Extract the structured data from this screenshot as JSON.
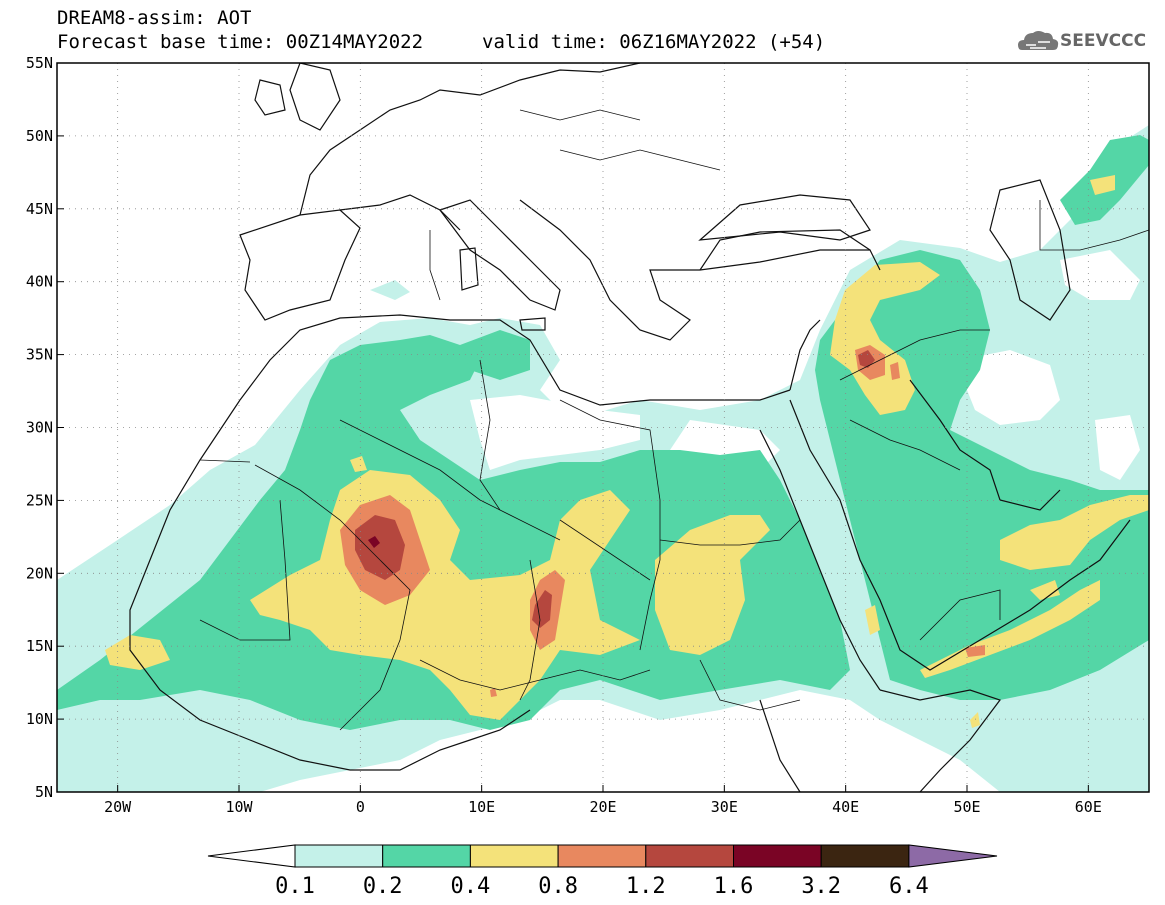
{
  "title": {
    "line1": "DREAM8-assim: AOT",
    "line2": "Forecast base time: 00Z14MAY2022",
    "valid": "valid time: 06Z16MAY2022 (+54)"
  },
  "logo": {
    "text": "SEEVCCC",
    "icon": "cloud-icon"
  },
  "axes": {
    "lat_labels": [
      "55N",
      "50N",
      "45N",
      "40N",
      "35N",
      "30N",
      "25N",
      "20N",
      "15N",
      "10N",
      "5N"
    ],
    "lat_values": [
      55,
      50,
      45,
      40,
      35,
      30,
      25,
      20,
      15,
      10,
      5
    ],
    "lon_labels": [
      "20W",
      "10W",
      "0",
      "10E",
      "20E",
      "30E",
      "40E",
      "50E",
      "60E"
    ],
    "lon_values": [
      -20,
      -10,
      0,
      10,
      20,
      30,
      40,
      50,
      60
    ],
    "lon_range": [
      -25,
      65
    ],
    "lat_range": [
      5,
      55
    ]
  },
  "colorbar": {
    "labels": [
      "0.1",
      "0.2",
      "0.4",
      "0.8",
      "1.2",
      "1.6",
      "3.2",
      "6.4"
    ],
    "colors": [
      "#c4f1e9",
      "#54d6a6",
      "#f4e27a",
      "#e8885f",
      "#b5473e",
      "#7a0425",
      "#3b2511",
      "#8d6aa6"
    ],
    "low_color": "#ffffff"
  },
  "colors": {
    "c01": "#c4f1e9",
    "c02": "#54d6a6",
    "c04": "#f4e27a",
    "c08": "#e8885f",
    "c12": "#b5473e",
    "c16": "#7a0425"
  }
}
